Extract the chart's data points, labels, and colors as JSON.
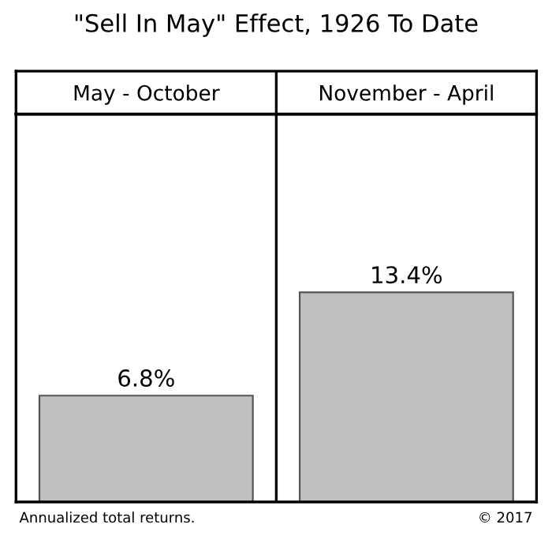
{
  "chart_data": {
    "type": "bar",
    "title": "\"Sell In May\" Effect, 1926 To Date",
    "categories": [
      "May - October",
      "November - April"
    ],
    "color": "#c0c0c0",
    "values": [
      6.8,
      13.4
    ],
    "value_labels": [
      "6.8%",
      "13.4%"
    ],
    "annotations": [
      "Annualized total returns.",
      "© 2017"
    ]
  }
}
